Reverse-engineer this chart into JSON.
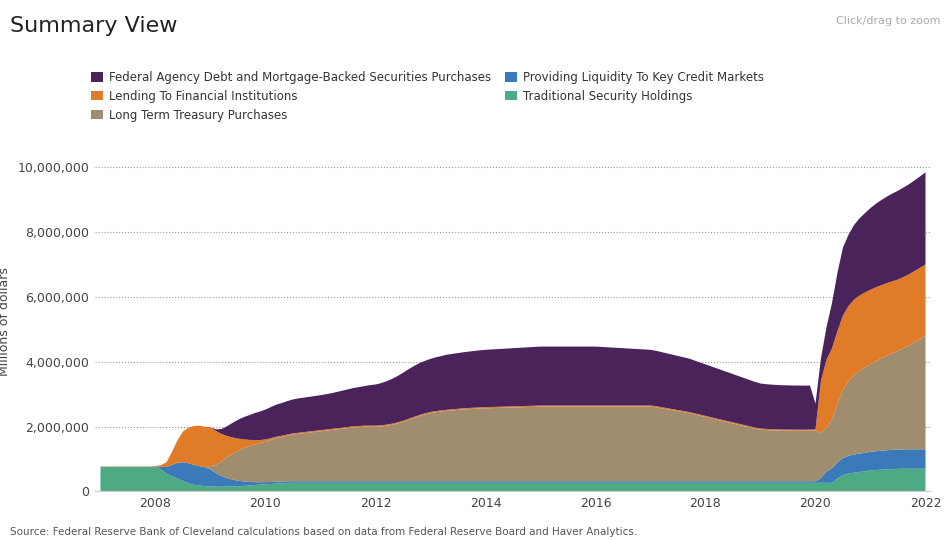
{
  "title": "Summary View",
  "subtitle": "Click/drag to zoom",
  "ylabel": "Millions of dollars",
  "source": "Source: Federal Reserve Bank of Cleveland calculations based on data from Federal Reserve Board and Haver Analytics.",
  "background_color": "#ffffff",
  "legend": [
    {
      "label": "Federal Agency Debt and Mortgage-Backed Securities Purchases",
      "color": "#4a235a"
    },
    {
      "label": "Lending To Financial Institutions",
      "color": "#e07b28"
    },
    {
      "label": "Long Term Treasury Purchases",
      "color": "#a08c6e"
    },
    {
      "label": "Providing Liquidity To Key Credit Markets",
      "color": "#3a7ab8"
    },
    {
      "label": "Traditional Security Holdings",
      "color": "#4daa82"
    }
  ],
  "yticks": [
    0,
    2000000,
    4000000,
    6000000,
    8000000,
    10000000
  ],
  "ylim": [
    0,
    10500000
  ],
  "colors": {
    "traditional": "#4daa82",
    "liquidity": "#3a7ab8",
    "longterm": "#a08c6e",
    "lending": "#e07b28",
    "agency": "#4a235a"
  },
  "years": [
    2007.0,
    2007.1,
    2007.2,
    2007.3,
    2007.4,
    2007.5,
    2007.6,
    2007.7,
    2007.8,
    2007.9,
    2008.0,
    2008.1,
    2008.2,
    2008.3,
    2008.4,
    2008.5,
    2008.6,
    2008.7,
    2008.8,
    2008.9,
    2009.0,
    2009.1,
    2009.2,
    2009.3,
    2009.4,
    2009.5,
    2009.6,
    2009.7,
    2009.8,
    2009.9,
    2010.0,
    2010.1,
    2010.2,
    2010.3,
    2010.4,
    2010.5,
    2010.6,
    2010.7,
    2010.8,
    2010.9,
    2011.0,
    2011.1,
    2011.2,
    2011.3,
    2011.4,
    2011.5,
    2011.6,
    2011.7,
    2011.8,
    2011.9,
    2012.0,
    2012.1,
    2012.2,
    2012.3,
    2012.4,
    2012.5,
    2012.6,
    2012.7,
    2012.8,
    2012.9,
    2013.0,
    2013.1,
    2013.2,
    2013.3,
    2013.4,
    2013.5,
    2013.6,
    2013.7,
    2013.8,
    2013.9,
    2014.0,
    2014.1,
    2014.2,
    2014.3,
    2014.4,
    2014.5,
    2014.6,
    2014.7,
    2014.8,
    2014.9,
    2015.0,
    2015.1,
    2015.2,
    2015.3,
    2015.4,
    2015.5,
    2015.6,
    2015.7,
    2015.8,
    2015.9,
    2016.0,
    2016.1,
    2016.2,
    2016.3,
    2016.4,
    2016.5,
    2016.6,
    2016.7,
    2016.8,
    2016.9,
    2017.0,
    2017.1,
    2017.2,
    2017.3,
    2017.4,
    2017.5,
    2017.6,
    2017.7,
    2017.8,
    2017.9,
    2018.0,
    2018.1,
    2018.2,
    2018.3,
    2018.4,
    2018.5,
    2018.6,
    2018.7,
    2018.8,
    2018.9,
    2019.0,
    2019.1,
    2019.2,
    2019.3,
    2019.4,
    2019.5,
    2019.6,
    2019.7,
    2019.8,
    2019.9,
    2020.0,
    2020.1,
    2020.2,
    2020.3,
    2020.4,
    2020.5,
    2020.6,
    2020.7,
    2020.8,
    2020.9,
    2021.0,
    2021.1,
    2021.2,
    2021.3,
    2021.4,
    2021.5,
    2021.6,
    2021.7,
    2021.8,
    2021.9,
    2022.0
  ],
  "traditional": [
    750000,
    750000,
    750000,
    750000,
    750000,
    750000,
    750000,
    750000,
    750000,
    750000,
    750000,
    680000,
    550000,
    470000,
    400000,
    320000,
    250000,
    200000,
    180000,
    165000,
    150000,
    145000,
    145000,
    150000,
    155000,
    160000,
    170000,
    180000,
    195000,
    210000,
    220000,
    230000,
    240000,
    250000,
    260000,
    265000,
    265000,
    265000,
    265000,
    265000,
    265000,
    265000,
    265000,
    265000,
    265000,
    265000,
    265000,
    265000,
    265000,
    265000,
    265000,
    265000,
    265000,
    265000,
    265000,
    265000,
    265000,
    265000,
    265000,
    265000,
    265000,
    265000,
    265000,
    265000,
    265000,
    265000,
    265000,
    265000,
    265000,
    265000,
    265000,
    265000,
    265000,
    265000,
    265000,
    265000,
    265000,
    265000,
    265000,
    265000,
    265000,
    265000,
    265000,
    265000,
    265000,
    265000,
    265000,
    265000,
    265000,
    265000,
    265000,
    265000,
    265000,
    265000,
    265000,
    265000,
    265000,
    265000,
    265000,
    265000,
    265000,
    265000,
    265000,
    265000,
    265000,
    265000,
    265000,
    265000,
    265000,
    265000,
    265000,
    265000,
    265000,
    265000,
    265000,
    265000,
    265000,
    265000,
    265000,
    265000,
    265000,
    265000,
    265000,
    265000,
    265000,
    265000,
    265000,
    265000,
    265000,
    265000,
    265000,
    265000,
    265000,
    265000,
    400000,
    500000,
    550000,
    580000,
    600000,
    620000,
    650000,
    660000,
    670000,
    680000,
    690000,
    695000,
    700000,
    700000,
    700000,
    700000,
    700000
  ],
  "liquidity": [
    10000,
    10000,
    10000,
    10000,
    10000,
    10000,
    10000,
    10000,
    10000,
    10000,
    20000,
    80000,
    200000,
    350000,
    480000,
    580000,
    620000,
    620000,
    600000,
    580000,
    530000,
    420000,
    330000,
    260000,
    210000,
    170000,
    140000,
    110000,
    90000,
    75000,
    65000,
    60000,
    55000,
    50000,
    50000,
    50000,
    50000,
    50000,
    50000,
    50000,
    50000,
    50000,
    50000,
    50000,
    50000,
    50000,
    50000,
    50000,
    50000,
    50000,
    50000,
    50000,
    50000,
    50000,
    50000,
    50000,
    50000,
    50000,
    50000,
    50000,
    50000,
    50000,
    50000,
    50000,
    50000,
    50000,
    50000,
    50000,
    50000,
    50000,
    50000,
    50000,
    50000,
    50000,
    50000,
    50000,
    50000,
    50000,
    50000,
    50000,
    50000,
    50000,
    50000,
    50000,
    50000,
    50000,
    50000,
    50000,
    50000,
    50000,
    50000,
    50000,
    50000,
    50000,
    50000,
    50000,
    50000,
    50000,
    50000,
    50000,
    50000,
    50000,
    50000,
    50000,
    50000,
    50000,
    50000,
    50000,
    50000,
    50000,
    50000,
    50000,
    50000,
    50000,
    50000,
    50000,
    50000,
    50000,
    50000,
    50000,
    50000,
    50000,
    50000,
    50000,
    50000,
    50000,
    50000,
    50000,
    50000,
    50000,
    50000,
    150000,
    350000,
    450000,
    500000,
    530000,
    550000,
    560000,
    565000,
    570000,
    575000,
    580000,
    585000,
    590000,
    595000,
    595000,
    598000,
    600000,
    600000,
    600000,
    600000
  ],
  "longterm": [
    0,
    0,
    0,
    0,
    0,
    0,
    0,
    0,
    0,
    0,
    0,
    0,
    0,
    0,
    0,
    0,
    0,
    0,
    0,
    0,
    100000,
    250000,
    450000,
    650000,
    800000,
    920000,
    1020000,
    1100000,
    1160000,
    1200000,
    1250000,
    1300000,
    1350000,
    1380000,
    1410000,
    1440000,
    1460000,
    1480000,
    1500000,
    1520000,
    1540000,
    1560000,
    1580000,
    1600000,
    1620000,
    1640000,
    1660000,
    1670000,
    1680000,
    1680000,
    1680000,
    1690000,
    1710000,
    1740000,
    1780000,
    1830000,
    1890000,
    1950000,
    2010000,
    2060000,
    2100000,
    2130000,
    2150000,
    2170000,
    2185000,
    2200000,
    2215000,
    2225000,
    2235000,
    2245000,
    2250000,
    2255000,
    2260000,
    2265000,
    2270000,
    2275000,
    2280000,
    2285000,
    2290000,
    2295000,
    2300000,
    2300000,
    2300000,
    2300000,
    2300000,
    2300000,
    2300000,
    2300000,
    2300000,
    2300000,
    2300000,
    2300000,
    2300000,
    2300000,
    2300000,
    2300000,
    2300000,
    2300000,
    2300000,
    2300000,
    2300000,
    2280000,
    2250000,
    2220000,
    2190000,
    2160000,
    2130000,
    2100000,
    2060000,
    2020000,
    1980000,
    1940000,
    1900000,
    1860000,
    1820000,
    1780000,
    1740000,
    1700000,
    1660000,
    1620000,
    1590000,
    1580000,
    1570000,
    1565000,
    1560000,
    1558000,
    1556000,
    1555000,
    1555000,
    1558000,
    1560000,
    1400000,
    1350000,
    1500000,
    1800000,
    2100000,
    2300000,
    2450000,
    2550000,
    2630000,
    2700000,
    2780000,
    2850000,
    2920000,
    2980000,
    3050000,
    3120000,
    3200000,
    3300000,
    3400000,
    3500000
  ],
  "lending": [
    10000,
    10000,
    10000,
    10000,
    10000,
    10000,
    10000,
    10000,
    10000,
    10000,
    15000,
    50000,
    150000,
    400000,
    700000,
    950000,
    1100000,
    1200000,
    1250000,
    1250000,
    1200000,
    1050000,
    850000,
    650000,
    500000,
    380000,
    280000,
    200000,
    140000,
    100000,
    70000,
    55000,
    45000,
    40000,
    38000,
    35000,
    35000,
    35000,
    35000,
    35000,
    35000,
    35000,
    35000,
    35000,
    35000,
    35000,
    35000,
    35000,
    35000,
    35000,
    35000,
    35000,
    35000,
    35000,
    35000,
    35000,
    35000,
    35000,
    35000,
    35000,
    35000,
    35000,
    35000,
    35000,
    35000,
    35000,
    35000,
    35000,
    35000,
    35000,
    35000,
    35000,
    35000,
    35000,
    35000,
    35000,
    35000,
    35000,
    35000,
    35000,
    35000,
    35000,
    35000,
    35000,
    35000,
    35000,
    35000,
    35000,
    35000,
    35000,
    35000,
    35000,
    35000,
    35000,
    35000,
    35000,
    35000,
    35000,
    35000,
    35000,
    35000,
    35000,
    35000,
    35000,
    35000,
    35000,
    35000,
    35000,
    35000,
    35000,
    35000,
    35000,
    35000,
    35000,
    35000,
    35000,
    35000,
    35000,
    35000,
    35000,
    35000,
    35000,
    35000,
    35000,
    35000,
    35000,
    35000,
    35000,
    35000,
    35000,
    35000,
    1600000,
    2100000,
    2200000,
    2250000,
    2300000,
    2320000,
    2330000,
    2330000,
    2320000,
    2300000,
    2280000,
    2260000,
    2240000,
    2220000,
    2200000,
    2200000,
    2200000,
    2200000,
    2200000,
    2200000
  ],
  "agency": [
    0,
    0,
    0,
    0,
    0,
    0,
    0,
    0,
    0,
    0,
    0,
    0,
    0,
    0,
    0,
    0,
    0,
    0,
    0,
    0,
    0,
    50000,
    150000,
    300000,
    450000,
    580000,
    680000,
    760000,
    830000,
    880000,
    920000,
    960000,
    990000,
    1010000,
    1030000,
    1050000,
    1060000,
    1065000,
    1070000,
    1075000,
    1080000,
    1090000,
    1100000,
    1120000,
    1140000,
    1160000,
    1180000,
    1200000,
    1220000,
    1250000,
    1270000,
    1300000,
    1340000,
    1380000,
    1430000,
    1480000,
    1530000,
    1570000,
    1600000,
    1620000,
    1640000,
    1660000,
    1680000,
    1700000,
    1710000,
    1720000,
    1730000,
    1740000,
    1750000,
    1760000,
    1770000,
    1775000,
    1780000,
    1785000,
    1790000,
    1795000,
    1800000,
    1805000,
    1810000,
    1815000,
    1820000,
    1820000,
    1820000,
    1820000,
    1820000,
    1820000,
    1820000,
    1820000,
    1820000,
    1820000,
    1820000,
    1810000,
    1800000,
    1790000,
    1780000,
    1770000,
    1760000,
    1750000,
    1740000,
    1730000,
    1720000,
    1710000,
    1700000,
    1690000,
    1680000,
    1670000,
    1660000,
    1650000,
    1630000,
    1610000,
    1590000,
    1570000,
    1550000,
    1530000,
    1510000,
    1490000,
    1470000,
    1450000,
    1430000,
    1410000,
    1390000,
    1380000,
    1375000,
    1370000,
    1368000,
    1365000,
    1363000,
    1362000,
    1360000,
    1360000,
    800000,
    700000,
    1000000,
    1400000,
    1800000,
    2100000,
    2200000,
    2300000,
    2380000,
    2450000,
    2520000,
    2580000,
    2630000,
    2670000,
    2710000,
    2740000,
    2760000,
    2780000,
    2800000,
    2820000,
    2850000
  ]
}
